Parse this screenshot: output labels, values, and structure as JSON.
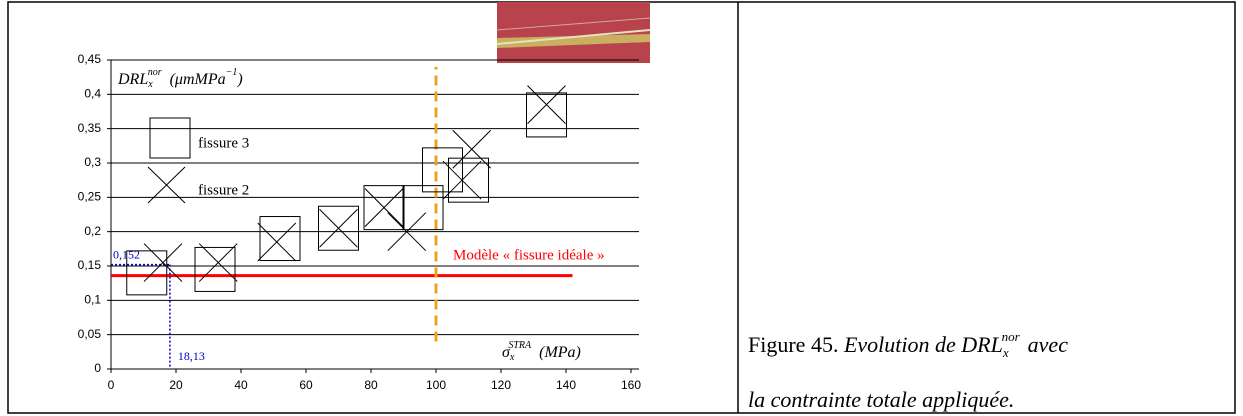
{
  "chart_data": {
    "type": "scatter",
    "y_label": {
      "main": "DRL",
      "sub": "x",
      "sup": "nor",
      "unit": "(μmMPa",
      "exp": "−1",
      "close": ")"
    },
    "x_label": {
      "main": "σ",
      "sub": "x",
      "sup": "STRA",
      "unit": "(MPa)"
    },
    "xlim": [
      0,
      160
    ],
    "xticks": [
      0,
      20,
      40,
      60,
      80,
      100,
      120,
      140,
      160
    ],
    "ylim": [
      0,
      0.45
    ],
    "yticks": [
      0,
      {
        "value": 0.05,
        "label": "0,05"
      },
      {
        "value": 0.1,
        "label": "0,1"
      },
      {
        "value": 0.15,
        "label": "0,15"
      },
      {
        "value": 0.2,
        "label": "0,2"
      },
      {
        "value": 0.25,
        "label": "0,25"
      },
      {
        "value": 0.3,
        "label": "0,3"
      },
      {
        "value": 0.35,
        "label": "0,35"
      },
      {
        "value": 0.4,
        "label": "0,4"
      },
      {
        "value": 0.45,
        "label": "0,45"
      }
    ],
    "grid": true,
    "series": [
      {
        "name": "fissure 3",
        "marker": "square",
        "color": "#000000",
        "x": [
          11,
          32,
          52,
          70,
          84,
          96,
          102,
          110,
          134
        ],
        "values": [
          0.14,
          0.145,
          0.19,
          0.205,
          0.235,
          0.235,
          0.29,
          0.275,
          0.37
        ]
      },
      {
        "name": "fissure 2",
        "marker": "cross",
        "color": "#000000",
        "x": [
          16,
          33,
          51,
          70,
          84,
          91,
          108,
          111,
          134
        ],
        "values": [
          0.155,
          0.155,
          0.185,
          0.205,
          0.235,
          0.2,
          0.275,
          0.32,
          0.385
        ]
      }
    ],
    "reference_line": {
      "label": "Modèle « fissure idéale »",
      "value": 0.136,
      "x_end": 142,
      "color": "#ff0000"
    },
    "vertical_line": {
      "value": 100,
      "ylim": [
        0.04,
        0.44
      ],
      "color": "#f0a020"
    },
    "annotation_y": {
      "value": 0.152,
      "label": "0,152",
      "color": "#0000cc"
    },
    "annotation_x": {
      "value": 18.13,
      "label": "18,13",
      "color": "#0000cc"
    }
  },
  "caption": {
    "prefix": "Figure 45.",
    "italic1": "Evolution de",
    "sym": "DRL",
    "sub": "x",
    "sup": "nor",
    "italic2": "avec",
    "line2": "la contrainte totale appliquée."
  }
}
